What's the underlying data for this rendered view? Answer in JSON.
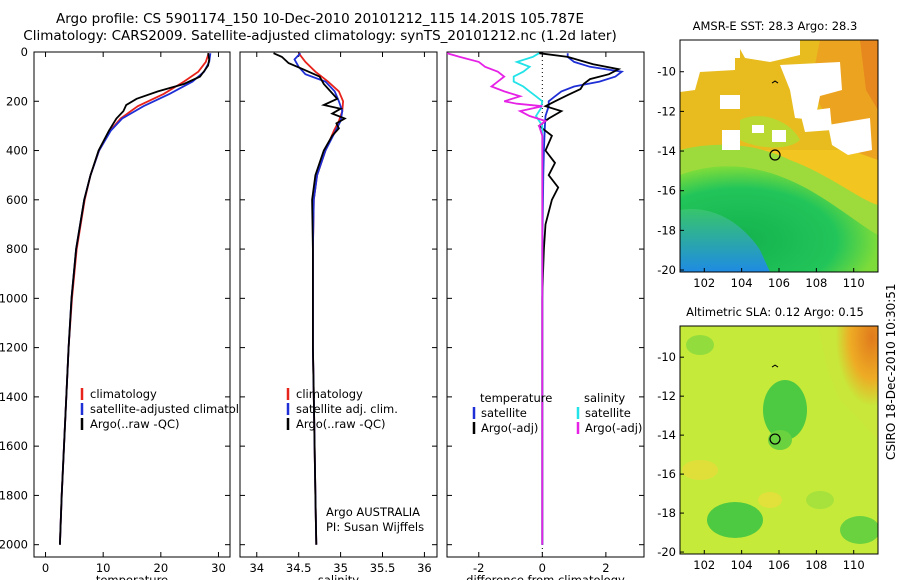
{
  "header": {
    "line1": "Argo profile: CS 5901174_150 10-Dec-2010 20101212_115 14.201S 105.787E",
    "line2": "Climatology: CARS2009. Satellite-adjusted climatology: synTS_20101212.nc (1.2d later)"
  },
  "side_label": "CSIRO 18-Dec-2010 10:30:51",
  "colors": {
    "climatology": "#e8231b",
    "satellite": "#1f2fd6",
    "argo": "#000000",
    "cyan": "#22e3e8",
    "magenta": "#e622e6"
  },
  "chart_data": [
    {
      "id": "temperature",
      "type": "line",
      "xlabel": "temperature",
      "xlim": [
        -2,
        32
      ],
      "ylim": [
        2050,
        0
      ],
      "xticks": [
        0,
        10,
        20,
        30
      ],
      "yticks": [
        0,
        200,
        400,
        600,
        800,
        1000,
        1200,
        1400,
        1600,
        1800,
        2000
      ],
      "legend": [
        "climatology",
        "satellite-adjusted climatology",
        "Argo(..raw -QC)"
      ],
      "series": [
        {
          "name": "climatology",
          "color": "climatology",
          "depth": [
            5,
            40,
            80,
            120,
            170,
            220,
            270,
            320,
            400,
            500,
            600,
            800,
            1000,
            1200,
            1400,
            1600,
            1800,
            2000
          ],
          "values": [
            28.3,
            27.8,
            26.5,
            24.0,
            20.5,
            16.0,
            13.0,
            11.2,
            9.3,
            7.8,
            6.8,
            5.4,
            4.6,
            4.0,
            3.6,
            3.2,
            2.8,
            2.5
          ]
        },
        {
          "name": "satellite",
          "color": "satellite",
          "depth": [
            5,
            40,
            80,
            120,
            170,
            220,
            270,
            320,
            400,
            500,
            600,
            800,
            1000,
            1200,
            1400,
            1600,
            1800,
            2000
          ],
          "values": [
            28.6,
            28.4,
            27.5,
            25.5,
            21.5,
            17.0,
            13.3,
            11.3,
            9.3,
            7.8,
            6.7,
            5.3,
            4.5,
            4.0,
            3.6,
            3.2,
            2.8,
            2.5
          ]
        },
        {
          "name": "Argo",
          "color": "argo",
          "depth": [
            5,
            30,
            55,
            75,
            100,
            130,
            160,
            190,
            215,
            240,
            270,
            320,
            400,
            500,
            600,
            800,
            1000,
            1200,
            1400,
            1600,
            1800,
            2000
          ],
          "values": [
            28.2,
            28.4,
            28.2,
            27.6,
            26.8,
            24.0,
            19.5,
            15.8,
            14.0,
            13.5,
            12.3,
            11.0,
            9.2,
            7.8,
            6.7,
            5.3,
            4.5,
            4.0,
            3.6,
            3.2,
            2.8,
            2.5
          ]
        }
      ]
    },
    {
      "id": "salinity",
      "type": "line",
      "xlabel": "salinity",
      "xlim": [
        33.8,
        36.15
      ],
      "ylim": [
        2050,
        0
      ],
      "xticks": [
        34,
        34.5,
        35,
        35.5,
        36
      ],
      "yticks": [
        0,
        200,
        400,
        600,
        800,
        1000,
        1200,
        1400,
        1600,
        1800,
        2000
      ],
      "legend": [
        "climatology",
        "satellite adj. clim.",
        "Argo(..raw -QC)"
      ],
      "annotation": [
        "Argo AUSTRALIA",
        "PI: Susan Wijffels"
      ],
      "series": [
        {
          "name": "climatology",
          "color": "climatology",
          "depth": [
            5,
            40,
            80,
            120,
            160,
            200,
            240,
            280,
            320,
            400,
            500,
            600,
            800,
            1000,
            1200,
            1400,
            1600,
            1800,
            2000
          ],
          "values": [
            34.5,
            34.58,
            34.7,
            34.85,
            34.98,
            35.03,
            35.02,
            34.98,
            34.92,
            34.82,
            34.72,
            34.68,
            34.67,
            34.67,
            34.67,
            34.68,
            34.69,
            34.7,
            34.71
          ]
        },
        {
          "name": "satellite",
          "color": "satellite",
          "depth": [
            5,
            30,
            60,
            90,
            120,
            160,
            200,
            240,
            280,
            320,
            400,
            500,
            600,
            800,
            1000,
            1200,
            1400,
            1600,
            1800,
            2000
          ],
          "values": [
            34.52,
            34.45,
            34.5,
            34.58,
            34.82,
            34.93,
            34.98,
            35.02,
            35.0,
            34.94,
            34.82,
            34.72,
            34.68,
            34.67,
            34.67,
            34.67,
            34.68,
            34.69,
            34.7,
            34.71
          ]
        },
        {
          "name": "Argo",
          "color": "argo",
          "depth": [
            5,
            20,
            45,
            70,
            100,
            130,
            160,
            190,
            215,
            230,
            250,
            270,
            290,
            310,
            340,
            400,
            500,
            600,
            800,
            1000,
            1200,
            1400,
            1600,
            1800,
            2000
          ],
          "values": [
            34.2,
            34.3,
            34.38,
            34.55,
            34.75,
            34.8,
            34.88,
            34.96,
            34.8,
            35.0,
            34.9,
            35.05,
            34.95,
            34.98,
            34.9,
            34.8,
            34.7,
            34.66,
            34.67,
            34.67,
            34.67,
            34.68,
            34.69,
            34.7,
            34.71
          ]
        }
      ]
    },
    {
      "id": "difference",
      "type": "line",
      "xlabel": "difference from climatology",
      "xlim": [
        -3,
        3.2
      ],
      "ylim": [
        2050,
        0
      ],
      "xticks": [
        -2,
        0,
        2
      ],
      "yticks": [
        0,
        200,
        400,
        600,
        800,
        1000,
        1200,
        1400,
        1600,
        1800,
        2000
      ],
      "legend_left_title": "temperature",
      "legend_right_title": "salinity",
      "legend_left": [
        "satellite",
        "Argo(-adj)"
      ],
      "legend_right": [
        "satellite",
        "Argo(-adj)"
      ],
      "series": [
        {
          "name": "temp satellite",
          "color": "satellite",
          "depth": [
            5,
            20,
            40,
            60,
            80,
            100,
            120,
            140,
            160,
            180,
            200,
            220,
            260,
            300,
            400,
            500,
            600,
            800,
            1000,
            1200,
            1400,
            1600,
            1800,
            2000
          ],
          "values": [
            0.8,
            0.8,
            1.0,
            1.5,
            2.5,
            2.3,
            1.8,
            1.0,
            0.6,
            0.4,
            0.2,
            0.2,
            0.1,
            0.08,
            0.05,
            0.03,
            0.02,
            0.0,
            0.0,
            0.0,
            0.0,
            0.0,
            0.0,
            0.0
          ]
        },
        {
          "name": "temp Argo",
          "color": "argo",
          "depth": [
            5,
            20,
            50,
            70,
            90,
            110,
            130,
            150,
            175,
            200,
            220,
            240,
            270,
            300,
            340,
            400,
            450,
            500,
            550,
            600,
            700,
            800,
            900,
            1000,
            1200,
            1400,
            1600,
            1800,
            2000
          ],
          "values": [
            -0.1,
            0.8,
            1.6,
            2.4,
            2.1,
            1.5,
            1.3,
            1.2,
            0.8,
            0.4,
            0.1,
            0.6,
            0.2,
            -0.1,
            0.3,
            0.1,
            0.4,
            0.2,
            0.5,
            0.3,
            0.1,
            0.05,
            0.02,
            0.0,
            0.0,
            0.0,
            0.0,
            0.0,
            0.0
          ]
        },
        {
          "name": "sal satellite",
          "color": "cyan",
          "depth": [
            5,
            20,
            40,
            60,
            80,
            100,
            120,
            140,
            160,
            180,
            200,
            230,
            260,
            300,
            400,
            500,
            600,
            800,
            1000,
            1400,
            2000
          ],
          "values": [
            -0.1,
            -0.3,
            -0.8,
            -0.4,
            -0.6,
            -0.9,
            -0.9,
            -0.6,
            -0.4,
            -0.2,
            0.0,
            -0.05,
            -0.2,
            0.0,
            0.0,
            0.0,
            0.0,
            0.0,
            0.0,
            0.0,
            0.0
          ]
        },
        {
          "name": "sal Argo",
          "color": "magenta",
          "depth": [
            5,
            20,
            40,
            60,
            80,
            100,
            120,
            140,
            160,
            180,
            200,
            210,
            220,
            240,
            260,
            280,
            300,
            340,
            400,
            500,
            600,
            800,
            1000,
            1400,
            2000
          ],
          "values": [
            -3.0,
            -2.6,
            -2.0,
            -1.8,
            -1.4,
            -1.2,
            -1.4,
            -1.6,
            -1.2,
            -0.7,
            -1.2,
            -0.8,
            0.0,
            -0.7,
            -0.4,
            0.1,
            -0.1,
            0.0,
            0.0,
            0.0,
            0.0,
            0.0,
            0.0,
            0.0,
            0.0
          ]
        }
      ]
    },
    {
      "id": "sst_map",
      "type": "heatmap",
      "title": "AMSR-E SST: 28.3 Argo: 28.3",
      "xticks": [
        102,
        104,
        106,
        108,
        110
      ],
      "yticks": [
        -10,
        -12,
        -14,
        -16,
        -18,
        -20
      ],
      "xlim": [
        100.7,
        111.3
      ],
      "ylim": [
        -20.1,
        -8.4
      ],
      "argo_position": [
        105.787,
        -14.201
      ]
    },
    {
      "id": "sla_map",
      "type": "heatmap",
      "title": "Altimetric SLA: 0.12 Argo: 0.15",
      "xticks": [
        102,
        104,
        106,
        108,
        110
      ],
      "yticks": [
        -10,
        -12,
        -14,
        -16,
        -18,
        -20
      ],
      "xlim": [
        100.7,
        111.3
      ],
      "ylim": [
        -20.1,
        -8.4
      ],
      "argo_position": [
        105.787,
        -14.201
      ]
    }
  ]
}
